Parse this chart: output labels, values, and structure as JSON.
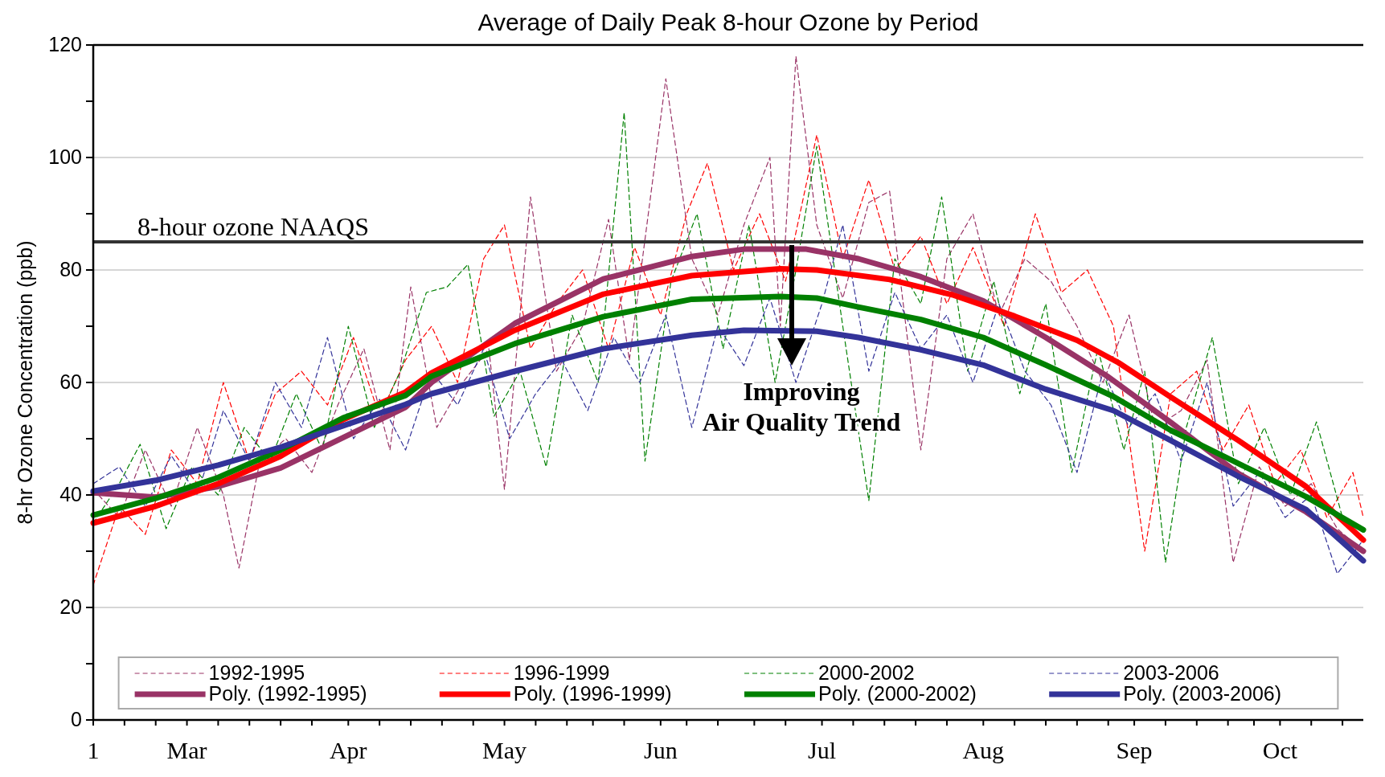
{
  "chart_data": {
    "type": "line",
    "title": "Average of Daily Peak 8-hour Ozone by Period",
    "ylabel": "8-hr Ozone Concentration (ppb)",
    "xlim": [
      "--03-01",
      "--10-31"
    ],
    "ylim": [
      0,
      120
    ],
    "xticks": [
      {
        "value": "--03-01",
        "label": "1"
      },
      {
        "value": "--03-07",
        "label": null
      },
      {
        "value": "--03-13",
        "label": null
      },
      {
        "value": "--03-19",
        "label": "Mar"
      },
      {
        "value": "--03-25",
        "label": null
      },
      {
        "value": "--03-31",
        "label": null
      },
      {
        "value": "--04-06",
        "label": null
      },
      {
        "value": "--04-12",
        "label": null
      },
      {
        "value": "--04-19",
        "label": "Apr"
      },
      {
        "value": "--04-25",
        "label": null
      },
      {
        "value": "--05-01",
        "label": null
      },
      {
        "value": "--05-07",
        "label": null
      },
      {
        "value": "--05-13",
        "label": null
      },
      {
        "value": "--05-19",
        "label": "May"
      },
      {
        "value": "--05-25",
        "label": null
      },
      {
        "value": "--05-31",
        "label": null
      },
      {
        "value": "--06-05",
        "label": null
      },
      {
        "value": "--06-11",
        "label": null
      },
      {
        "value": "--06-18",
        "label": "Jun"
      },
      {
        "value": "--06-23",
        "label": null
      },
      {
        "value": "--06-29",
        "label": null
      },
      {
        "value": "--07-06",
        "label": null
      },
      {
        "value": "--07-12",
        "label": null
      },
      {
        "value": "--07-19",
        "label": "Jul"
      },
      {
        "value": "--07-25",
        "label": null
      },
      {
        "value": "--07-31",
        "label": null
      },
      {
        "value": "--08-06",
        "label": null
      },
      {
        "value": "--08-12",
        "label": null
      },
      {
        "value": "--08-19",
        "label": "Aug"
      },
      {
        "value": "--08-25",
        "label": null
      },
      {
        "value": "--08-31",
        "label": null
      },
      {
        "value": "--09-06",
        "label": null
      },
      {
        "value": "--09-12",
        "label": null
      },
      {
        "value": "--09-17",
        "label": "Sep"
      },
      {
        "value": "--09-23",
        "label": null
      },
      {
        "value": "--09-29",
        "label": null
      },
      {
        "value": "--10-05",
        "label": null
      },
      {
        "value": "--10-10",
        "label": null
      },
      {
        "value": "--10-15",
        "label": "Oct"
      },
      {
        "value": "--10-21",
        "label": null
      },
      {
        "value": "--10-27",
        "label": null
      }
    ],
    "yticks": [
      0,
      {
        "value": 10,
        "label": null
      },
      20,
      {
        "value": 30,
        "label": null
      },
      40,
      {
        "value": 50,
        "label": null
      },
      60,
      {
        "value": 70,
        "label": null
      },
      80,
      {
        "value": 90,
        "label": null
      },
      100,
      {
        "value": 110,
        "label": null
      },
      120
    ],
    "grid": "y",
    "legend": "bottom",
    "marker": "none",
    "ref_lines": [
      {
        "axis": "y",
        "value": 85,
        "label": "8-hour ozone NAAQS",
        "color": "#333333"
      }
    ],
    "annotations": [
      "Improving Air Quality Trend"
    ],
    "series": [
      {
        "name": "1992-1995",
        "color": "#993366",
        "line_style": "dashed",
        "x": [
          "--03-01",
          "--03-06",
          "--03-11",
          "--03-16",
          "--03-21",
          "--03-26",
          "--03-29",
          "--04-02",
          "--04-07",
          "--04-12",
          "--04-17",
          "--04-22",
          "--04-27",
          "--05-01",
          "--05-06",
          "--05-11",
          "--05-16",
          "--05-19",
          "--05-24",
          "--05-29",
          "--06-03",
          "--06-08",
          "--06-12",
          "--06-19",
          "--06-24",
          "--06-29",
          "--07-04",
          "--07-09",
          "--07-11",
          "--07-14",
          "--07-18",
          "--07-23",
          "--07-28",
          "--08-01",
          "--08-07",
          "--08-12",
          "--08-17",
          "--08-22",
          "--08-27",
          "--09-01",
          "--09-06",
          "--09-11",
          "--09-16",
          "--09-21",
          "--09-26",
          "--10-01",
          "--10-06",
          "--10-11",
          "--10-16",
          "--10-21",
          "--10-26",
          "--10-31"
        ],
        "values": [
          41,
          36,
          48,
          38,
          52,
          40,
          27,
          46,
          50,
          44,
          56,
          66,
          48,
          77,
          52,
          60,
          66,
          41,
          93,
          62,
          70,
          89,
          64,
          114,
          82,
          72,
          88,
          100,
          70,
          118,
          88,
          75,
          92,
          94,
          48,
          82,
          90,
          72,
          82,
          78,
          70,
          60,
          72,
          52,
          55,
          64,
          28,
          45,
          38,
          42,
          34,
          30
        ]
      },
      {
        "name": "1996-1999",
        "color": "#ff0000",
        "line_style": "dashed",
        "x": [
          "--03-01",
          "--03-06",
          "--03-11",
          "--03-16",
          "--03-21",
          "--03-26",
          "--03-31",
          "--04-05",
          "--04-10",
          "--04-15",
          "--04-20",
          "--04-25",
          "--04-30",
          "--05-05",
          "--05-10",
          "--05-15",
          "--05-19",
          "--05-24",
          "--05-29",
          "--06-03",
          "--06-08",
          "--06-13",
          "--06-18",
          "--06-23",
          "--06-27",
          "--07-02",
          "--07-07",
          "--07-12",
          "--07-18",
          "--07-23",
          "--07-28",
          "--08-02",
          "--08-07",
          "--08-12",
          "--08-17",
          "--08-23",
          "--08-29",
          "--09-03",
          "--09-08",
          "--09-13",
          "--09-19",
          "--09-24",
          "--09-29",
          "--10-04",
          "--10-09",
          "--10-14",
          "--10-19",
          "--10-24",
          "--10-29",
          "--10-31"
        ],
        "values": [
          24,
          38,
          33,
          48,
          42,
          60,
          46,
          58,
          62,
          56,
          68,
          54,
          64,
          70,
          60,
          82,
          88,
          66,
          74,
          80,
          66,
          84,
          72,
          90,
          99,
          80,
          90,
          78,
          104,
          82,
          96,
          80,
          86,
          74,
          84,
          70,
          90,
          76,
          80,
          70,
          30,
          58,
          62,
          48,
          56,
          42,
          48,
          36,
          44,
          36
        ]
      },
      {
        "name": "2000-2002",
        "color": "#008000",
        "line_style": "dashed",
        "x": [
          "--03-01",
          "--03-06",
          "--03-10",
          "--03-15",
          "--03-20",
          "--03-25",
          "--03-30",
          "--04-04",
          "--04-09",
          "--04-14",
          "--04-19",
          "--04-24",
          "--04-29",
          "--05-04",
          "--05-08",
          "--05-12",
          "--05-17",
          "--05-22",
          "--05-27",
          "--06-01",
          "--06-06",
          "--06-11",
          "--06-15",
          "--06-20",
          "--06-25",
          "--06-30",
          "--07-05",
          "--07-10",
          "--07-14",
          "--07-18",
          "--07-23",
          "--07-28",
          "--08-02",
          "--08-07",
          "--08-11",
          "--08-16",
          "--08-21",
          "--08-26",
          "--08-31",
          "--09-05",
          "--09-10",
          "--09-15",
          "--09-19",
          "--09-23",
          "--09-27",
          "--10-02",
          "--10-07",
          "--10-12",
          "--10-17",
          "--10-22",
          "--10-27",
          "--10-31"
        ],
        "values": [
          35,
          42,
          49,
          34,
          45,
          40,
          52,
          46,
          58,
          48,
          70,
          52,
          62,
          76,
          77,
          81,
          54,
          62,
          45,
          72,
          60,
          108,
          46,
          78,
          90,
          66,
          88,
          60,
          80,
          102,
          70,
          39,
          82,
          74,
          93,
          62,
          78,
          58,
          74,
          44,
          66,
          48,
          62,
          28,
          52,
          68,
          42,
          52,
          40,
          53,
          36,
          34
        ]
      },
      {
        "name": "2003-2006",
        "color": "#333399",
        "line_style": "dashed",
        "x": [
          "--03-01",
          "--03-06",
          "--03-11",
          "--03-16",
          "--03-21",
          "--03-26",
          "--03-31",
          "--04-05",
          "--04-10",
          "--04-15",
          "--04-20",
          "--04-25",
          "--04-30",
          "--05-05",
          "--05-10",
          "--05-15",
          "--05-20",
          "--05-25",
          "--05-30",
          "--06-04",
          "--06-09",
          "--06-14",
          "--06-19",
          "--06-24",
          "--06-29",
          "--07-04",
          "--07-09",
          "--07-14",
          "--07-19",
          "--07-23",
          "--07-28",
          "--08-02",
          "--08-07",
          "--08-12",
          "--08-17",
          "--08-22",
          "--08-27",
          "--09-01",
          "--09-06",
          "--09-11",
          "--09-16",
          "--09-21",
          "--09-26",
          "--10-01",
          "--10-06",
          "--10-11",
          "--10-16",
          "--10-21",
          "--10-26",
          "--10-31"
        ],
        "values": [
          42,
          45,
          38,
          47,
          40,
          55,
          46,
          60,
          52,
          68,
          50,
          57,
          48,
          62,
          56,
          66,
          50,
          58,
          64,
          55,
          68,
          60,
          72,
          52,
          70,
          63,
          75,
          60,
          74,
          88,
          62,
          76,
          66,
          72,
          60,
          74,
          62,
          56,
          44,
          62,
          52,
          58,
          46,
          60,
          38,
          44,
          36,
          40,
          26,
          32
        ]
      },
      {
        "name": "Poly. (1992-1995)",
        "color": "#993366",
        "line_style": "solid",
        "x": [
          "--03-01",
          "--03-13",
          "--03-25",
          "--04-06",
          "--04-18",
          "--04-30",
          "--05-05",
          "--05-21",
          "--06-07",
          "--06-24",
          "--07-04",
          "--07-16",
          "--07-26",
          "--08-07",
          "--08-19",
          "--08-31",
          "--09-12",
          "--09-24",
          "--10-07",
          "--10-20",
          "--10-31"
        ],
        "values": [
          40.4,
          39.6,
          41.5,
          44.8,
          50.2,
          55.6,
          60,
          70.5,
          78.4,
          82.4,
          83.7,
          83.7,
          82,
          78.8,
          74.5,
          68,
          61,
          52.9,
          43.8,
          37,
          30
        ]
      },
      {
        "name": "Poly. (1996-1999)",
        "color": "#ff0000",
        "line_style": "solid",
        "x": [
          "--03-01",
          "--03-13",
          "--03-25",
          "--04-06",
          "--04-18",
          "--04-30",
          "--05-05",
          "--05-21",
          "--06-07",
          "--06-24",
          "--07-11",
          "--07-18",
          "--08-01",
          "--08-13",
          "--08-25",
          "--09-06",
          "--09-14",
          "--09-24",
          "--10-07",
          "--10-20",
          "--10-31"
        ],
        "values": [
          35,
          38,
          42,
          46.9,
          53.4,
          58.3,
          61.7,
          69.3,
          75.7,
          79,
          80.2,
          80,
          78.3,
          75.6,
          71.8,
          67.5,
          63.5,
          57.4,
          49.7,
          41.5,
          32
        ]
      },
      {
        "name": "Poly. (2000-2002)",
        "color": "#008000",
        "line_style": "solid",
        "x": [
          "--03-01",
          "--03-13",
          "--03-25",
          "--04-06",
          "--04-18",
          "--04-30",
          "--05-05",
          "--05-21",
          "--06-07",
          "--06-24",
          "--07-11",
          "--07-18",
          "--07-26",
          "--08-07",
          "--08-19",
          "--08-31",
          "--09-13",
          "--09-24",
          "--10-07",
          "--10-20",
          "--10-31"
        ],
        "values": [
          36.4,
          39.4,
          43.1,
          48,
          53.7,
          57.7,
          61.1,
          66.9,
          71.7,
          74.8,
          75.3,
          75,
          73.4,
          71.2,
          68,
          63.1,
          57.5,
          51.5,
          45.6,
          39.7,
          33.8
        ]
      },
      {
        "name": "Poly. (2003-2006)",
        "color": "#333399",
        "line_style": "solid",
        "x": [
          "--03-01",
          "--03-13",
          "--03-25",
          "--04-06",
          "--04-18",
          "--04-30",
          "--05-05",
          "--05-21",
          "--06-07",
          "--06-24",
          "--07-04",
          "--07-18",
          "--07-26",
          "--08-07",
          "--08-19",
          "--08-31",
          "--09-13",
          "--09-24",
          "--10-07",
          "--10-20",
          "--10-31"
        ],
        "values": [
          40.7,
          42.6,
          45.3,
          48.5,
          52.3,
          56.1,
          58,
          62,
          66,
          68.4,
          69.3,
          69.1,
          68,
          65.8,
          63.1,
          58.8,
          55,
          49.7,
          43.3,
          37.4,
          28.3
        ]
      }
    ]
  }
}
